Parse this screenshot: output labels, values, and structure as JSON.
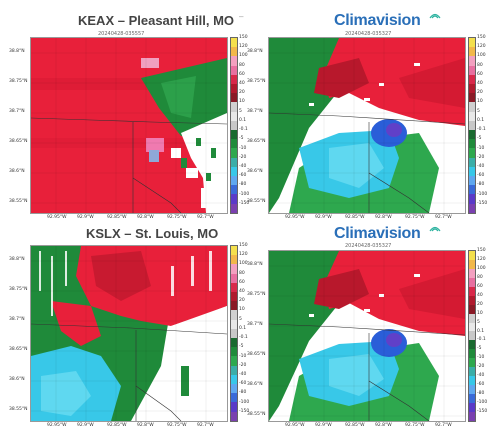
{
  "panels": {
    "top_left": {
      "title": "KEAX – Pleasant Hill, MO",
      "timestamp": "20240428-035557"
    },
    "top_right": {
      "brand": "Climavision",
      "timestamp": "20240428-035327"
    },
    "bottom_left": {
      "title": "KSLX – St. Louis, MO",
      "timestamp": ""
    },
    "bottom_right": {
      "brand": "Climavision",
      "timestamp": "20240428-035327"
    }
  },
  "latitudes": [
    "38.8°N",
    "38.75°N",
    "38.7°N",
    "38.65°N",
    "38.6°N",
    "38.55°N"
  ],
  "longitudes": [
    "92.95°W",
    "92.9°W",
    "92.85°W",
    "92.8°W",
    "92.75°W",
    "92.7°W"
  ],
  "colorbar_labels": [
    "150",
    "120",
    "100",
    "80",
    "60",
    "40",
    "20",
    "10",
    "5",
    "0.1",
    "-0.1",
    "-5",
    "-10",
    "-20",
    "-40",
    "-60",
    "-80",
    "-100",
    "-150"
  ],
  "colors": {
    "outbound_red": "#e8203a",
    "inbound_green": "#1f8a3a",
    "inbound_cyan": "#38c8e8",
    "brand_blue": "#2a6fb8",
    "background": "#ffffff"
  },
  "icons": {
    "brand_mark": "signal-waves-icon"
  }
}
